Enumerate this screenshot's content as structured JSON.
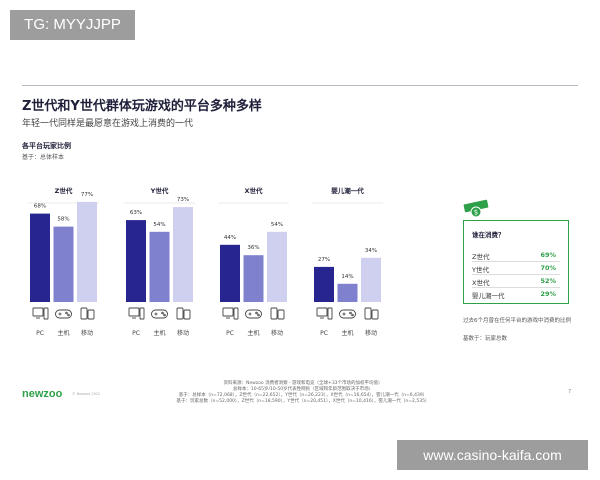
{
  "watermark_top": "TG: MYYJJPP",
  "watermark_bottom": "www.casino-kaifa.com",
  "title": "Z世代和Y世代群体玩游戏的平台多种多样",
  "subtitle": "年轻一代同样是最愿意在游戏上消费的一代",
  "chart_title": "各平台玩家比例",
  "base_label": "基于：总体样本",
  "colors": {
    "pc": "#27258f",
    "console": "#7f80ce",
    "mobile": "#cfd0f0",
    "accent": "#2fa04a"
  },
  "chart_data": {
    "type": "bar",
    "categories": [
      "PC",
      "主机",
      "移动"
    ],
    "value_suffix": "%",
    "icons": [
      "pc-icon",
      "gamepad-icon",
      "phone-icon"
    ],
    "series": [
      {
        "name": "Z世代",
        "values": [
          68,
          58,
          77
        ]
      },
      {
        "name": "Y世代",
        "values": [
          63,
          54,
          73
        ]
      },
      {
        "name": "X世代",
        "values": [
          44,
          36,
          54
        ]
      },
      {
        "name": "婴儿潮一代",
        "values": [
          27,
          14,
          34
        ]
      }
    ],
    "ylim": [
      0,
      100
    ]
  },
  "spend": {
    "heading": "谁在消费？",
    "rows": [
      {
        "label": "Z世代",
        "value": "69%"
      },
      {
        "label": "Y世代",
        "value": "70%"
      },
      {
        "label": "X世代",
        "value": "52%"
      },
      {
        "label": "婴儿潮一代",
        "value": "29%"
      }
    ]
  },
  "note": "过去6个月曾在任何平台的游戏中消费的比例",
  "note_base": "基数于：玩家总数",
  "logo": "newzoo",
  "logo_small": "© Newzoo 2022",
  "source_line1": "资料来源：Newzoo 消费者洞察 - 游戏和电竞（全球+33个市场的加权平均值）",
  "source_line2": "总样本：10-65岁/10-50岁代表性网民（区域和年龄范围取决于市场）",
  "source_line3": "基于：总样本（n=72,068），Z世代（n=22,652），Y世代（n=26,223），X世代（n=16,654），婴儿潮一代（n=6,439）",
  "source_line4": "基于：玩家总数（n=52,000），Z世代（n=18,590），Y世代（n=20,451），X世代（n=10,416），婴儿潮一代（n=2,535）",
  "page_number": "7"
}
